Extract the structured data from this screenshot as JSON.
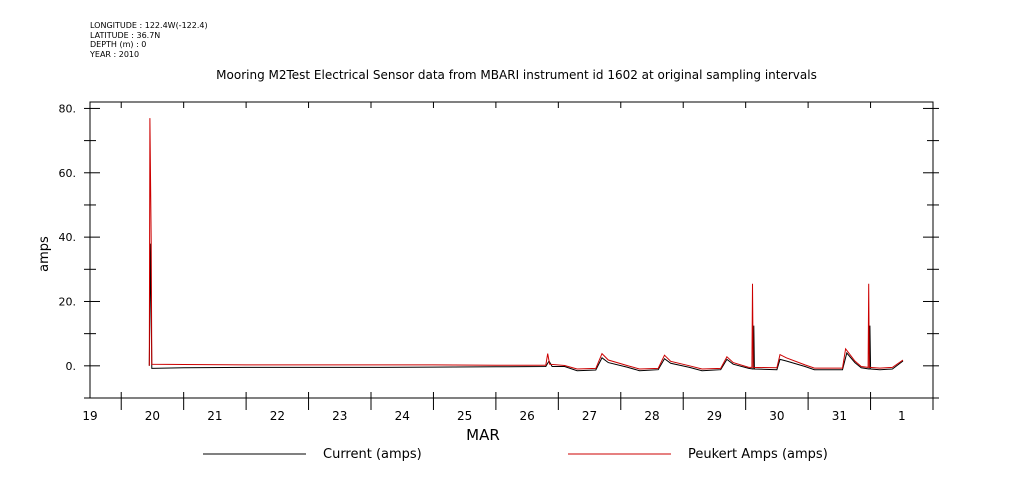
{
  "header": {
    "meta_lines": [
      "LONGITUDE : 122.4W(-122.4)",
      "LATITUDE : 36.7N",
      "DEPTH (m) : 0",
      "YEAR : 2010"
    ]
  },
  "chart_data": {
    "type": "line",
    "title": "Mooring M2Test Electrical Sensor data from MBARI instrument id 1602 at original sampling intervals",
    "xlabel": "MAR",
    "ylabel": "amps",
    "xlim": [
      19.0,
      32.5
    ],
    "ylim": [
      -10,
      82
    ],
    "yticks_major": [
      0,
      20,
      40,
      60,
      80
    ],
    "ytick_labels": [
      "0.",
      "20.",
      "40.",
      "60.",
      "80."
    ],
    "xtick_labels": [
      "19",
      "20",
      "21",
      "22",
      "23",
      "24",
      "25",
      "26",
      "27",
      "28",
      "29",
      "30",
      "31",
      "1"
    ],
    "grid": false,
    "legend_position": "bottom",
    "series": [
      {
        "name": "Current (amps)",
        "color": "#000000",
        "points": [
          [
            19.95,
            0.0
          ],
          [
            19.97,
            38.0
          ],
          [
            19.99,
            -0.8
          ],
          [
            20.5,
            -0.6
          ],
          [
            21.5,
            -0.5
          ],
          [
            22.5,
            -0.5
          ],
          [
            23.5,
            -0.5
          ],
          [
            24.5,
            -0.4
          ],
          [
            25.5,
            -0.3
          ],
          [
            26.3,
            -0.2
          ],
          [
            26.35,
            1.5
          ],
          [
            26.4,
            -0.2
          ],
          [
            26.6,
            -0.2
          ],
          [
            26.8,
            -1.5
          ],
          [
            27.1,
            -1.3
          ],
          [
            27.2,
            2.5
          ],
          [
            27.3,
            1.0
          ],
          [
            27.6,
            -0.4
          ],
          [
            27.8,
            -1.5
          ],
          [
            28.1,
            -1.2
          ],
          [
            28.2,
            2.2
          ],
          [
            28.3,
            0.8
          ],
          [
            28.6,
            -0.5
          ],
          [
            28.8,
            -1.5
          ],
          [
            29.1,
            -1.2
          ],
          [
            29.2,
            2.0
          ],
          [
            29.3,
            0.5
          ],
          [
            29.55,
            -0.8
          ],
          [
            29.62,
            -1.0
          ],
          [
            29.63,
            12.5
          ],
          [
            29.64,
            -1.0
          ],
          [
            30.0,
            -1.2
          ],
          [
            30.05,
            2.0
          ],
          [
            30.15,
            1.5
          ],
          [
            30.45,
            -0.2
          ],
          [
            30.6,
            -1.2
          ],
          [
            31.05,
            -1.2
          ],
          [
            31.12,
            4.0
          ],
          [
            31.25,
            1.0
          ],
          [
            31.35,
            -0.6
          ],
          [
            31.48,
            -1.0
          ],
          [
            31.49,
            12.5
          ],
          [
            31.5,
            -1.0
          ],
          [
            31.65,
            -1.2
          ],
          [
            31.85,
            -1.0
          ],
          [
            32.02,
            1.5
          ]
        ]
      },
      {
        "name": "Peukert Amps (amps)",
        "color": "#cc0000",
        "points": [
          [
            19.95,
            0.0
          ],
          [
            19.96,
            77.0
          ],
          [
            19.98,
            38.5
          ],
          [
            19.99,
            0.5
          ],
          [
            20.5,
            0.4
          ],
          [
            21.5,
            0.3
          ],
          [
            22.5,
            0.3
          ],
          [
            23.5,
            0.3
          ],
          [
            24.5,
            0.3
          ],
          [
            25.5,
            0.2
          ],
          [
            26.3,
            0.2
          ],
          [
            26.33,
            3.8
          ],
          [
            26.36,
            0.5
          ],
          [
            26.6,
            0.1
          ],
          [
            26.8,
            -1.0
          ],
          [
            27.1,
            -0.8
          ],
          [
            27.2,
            3.8
          ],
          [
            27.3,
            1.8
          ],
          [
            27.6,
            0.1
          ],
          [
            27.8,
            -1.0
          ],
          [
            28.1,
            -0.8
          ],
          [
            28.2,
            3.3
          ],
          [
            28.3,
            1.4
          ],
          [
            28.6,
            0.0
          ],
          [
            28.8,
            -1.0
          ],
          [
            29.1,
            -0.8
          ],
          [
            29.2,
            2.8
          ],
          [
            29.3,
            1.0
          ],
          [
            29.55,
            -0.5
          ],
          [
            29.6,
            -0.5
          ],
          [
            29.61,
            25.5
          ],
          [
            29.62,
            -0.5
          ],
          [
            30.0,
            -0.6
          ],
          [
            30.05,
            3.5
          ],
          [
            30.15,
            2.5
          ],
          [
            30.45,
            0.3
          ],
          [
            30.6,
            -0.7
          ],
          [
            31.05,
            -0.7
          ],
          [
            31.1,
            5.3
          ],
          [
            31.25,
            1.5
          ],
          [
            31.35,
            -0.2
          ],
          [
            31.46,
            -0.5
          ],
          [
            31.47,
            25.5
          ],
          [
            31.48,
            -0.5
          ],
          [
            31.65,
            -0.7
          ],
          [
            31.85,
            -0.5
          ],
          [
            32.02,
            1.8
          ]
        ]
      }
    ]
  }
}
